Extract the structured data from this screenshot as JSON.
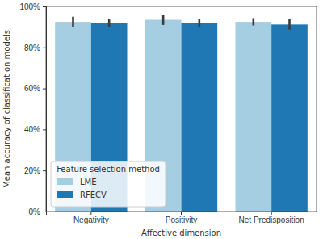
{
  "chart_data": {
    "type": "bar",
    "categories": [
      "Negativity",
      "Positivity",
      "Net Predisposition"
    ],
    "series": [
      {
        "name": "LME",
        "color": "#a6cee3",
        "values": [
          92.5,
          93.5,
          92.5
        ],
        "errors": [
          2.5,
          2.5,
          1.8
        ]
      },
      {
        "name": "RFECV",
        "color": "#1f78b4",
        "values": [
          92,
          92,
          91.2
        ],
        "errors": [
          2,
          2,
          2.5
        ]
      }
    ],
    "x_label": "Affective dimension",
    "y_label": "Mean accuracy of classification models",
    "legend_title": "Feature selection method",
    "legend": "lower left",
    "ylim": [
      0,
      100
    ],
    "yticks": [
      {
        "value": 0,
        "label": "0%"
      },
      {
        "value": 20,
        "label": "20%"
      },
      {
        "value": 40,
        "label": "40%"
      },
      {
        "value": 60,
        "label": "60%"
      },
      {
        "value": 80,
        "label": "80%"
      },
      {
        "value": 100,
        "label": "100%"
      }
    ],
    "grid": false
  }
}
